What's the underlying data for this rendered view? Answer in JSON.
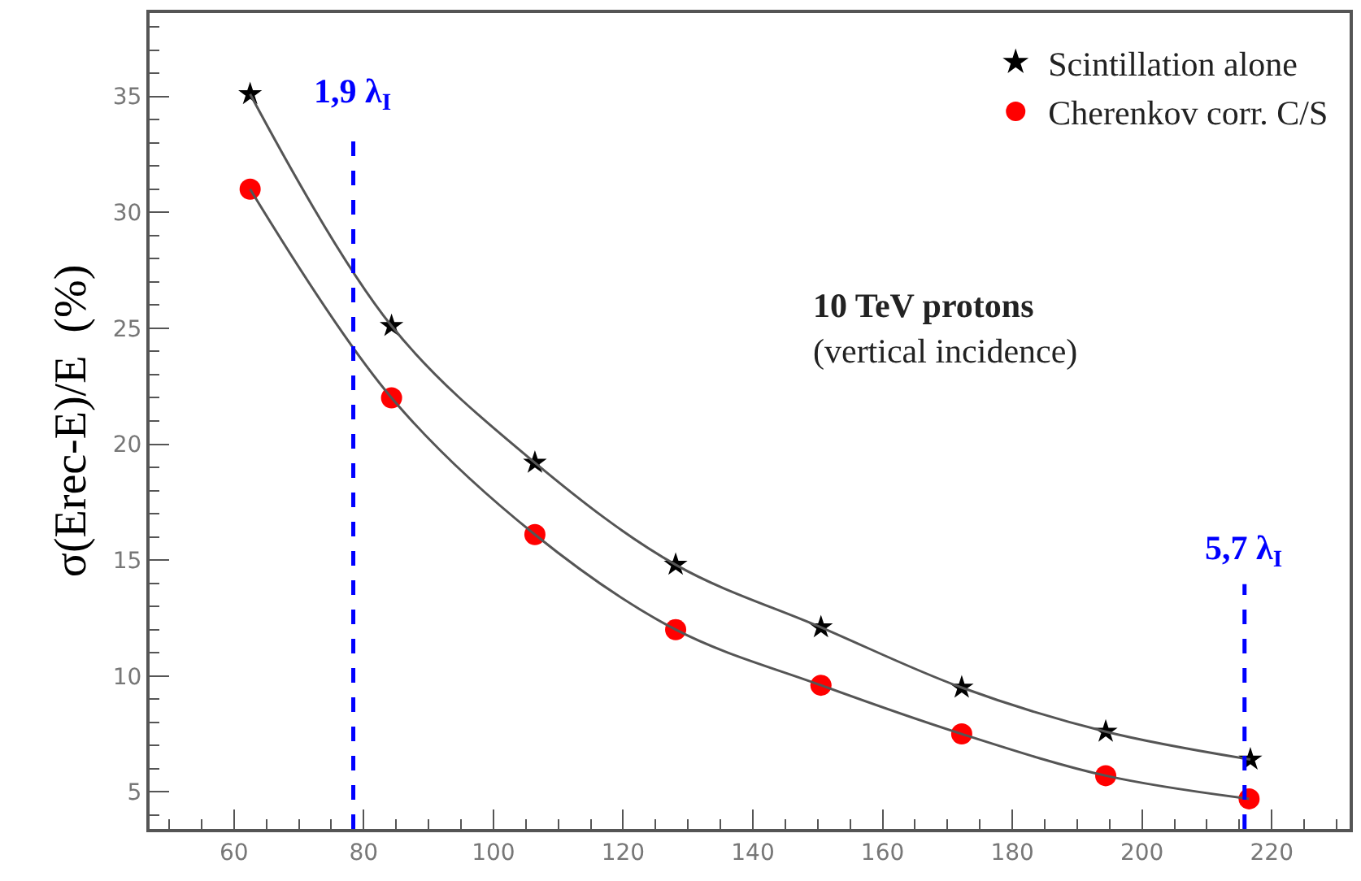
{
  "chart_data": {
    "type": "scatter",
    "ylabel": "σ(Erec-E)/E  (%)",
    "xlim": [
      47,
      232
    ],
    "ylim": [
      3.4,
      38.6
    ],
    "xticks": [
      60,
      80,
      100,
      120,
      140,
      160,
      180,
      200,
      220
    ],
    "yticks": [
      5,
      10,
      15,
      20,
      25,
      30,
      35
    ],
    "legend": "top right",
    "series": [
      {
        "name": "Scintillation alone",
        "color": "#000000",
        "marker": "star",
        "x": [
          62.5,
          84.3,
          106.4,
          128.1,
          150.5,
          172.2,
          194.4,
          216.7
        ],
        "values": [
          35.1,
          25.1,
          19.2,
          14.8,
          12.1,
          9.5,
          7.6,
          6.4
        ]
      },
      {
        "name": "Cherenkov corr. C/S",
        "color": "#ff0000",
        "marker": "circle",
        "x": [
          62.5,
          84.3,
          106.4,
          128.1,
          150.5,
          172.2,
          194.4,
          216.5
        ],
        "values": [
          31.0,
          22.0,
          16.1,
          12.0,
          9.6,
          7.5,
          5.7,
          4.7
        ]
      },
      {
        "type": "line",
        "color": "#555555",
        "x": [
          62.5,
          84.3,
          106.4,
          128.1,
          150.5,
          172.2,
          194.4,
          216.7
        ],
        "values": [
          35.1,
          25.1,
          19.2,
          14.8,
          12.1,
          9.5,
          7.6,
          6.4
        ]
      },
      {
        "type": "line",
        "color": "#555555",
        "x": [
          62.5,
          84.3,
          106.4,
          128.1,
          150.5,
          172.2,
          194.4,
          216.5
        ],
        "values": [
          31.0,
          22.0,
          16.1,
          12.0,
          9.6,
          7.5,
          5.7,
          4.7
        ]
      }
    ],
    "ref_lines": [
      {
        "axis": "x",
        "value": 78.4,
        "label": "1,9 λ$_{I}$",
        "color": "#0000ff",
        "line_style": "dashed"
      },
      {
        "axis": "x",
        "value": 215.8,
        "label": "5,7 λ$_{I}$",
        "color": "#0000ff",
        "line_style": "dashed"
      }
    ],
    "annotations": [
      "10 TeV protons",
      "(vertical incidence)"
    ]
  }
}
